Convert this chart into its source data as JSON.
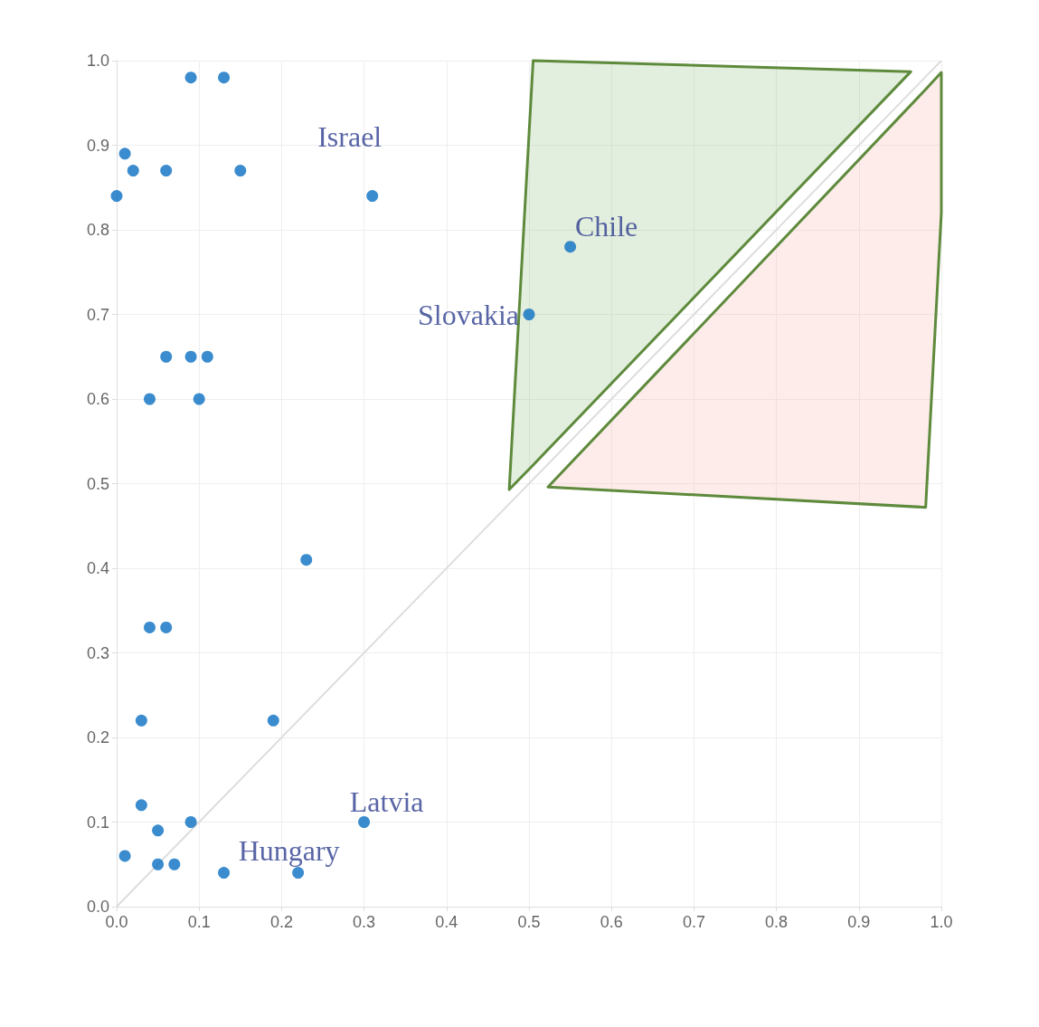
{
  "chart_data": {
    "type": "scatter",
    "xlim": [
      0,
      1
    ],
    "ylim": [
      0,
      1
    ],
    "xticks": [
      {
        "value": 0,
        "label": "0.0"
      },
      0.1,
      0.2,
      0.3,
      0.4,
      0.5,
      0.6,
      0.7,
      0.8,
      0.9,
      {
        "value": 1,
        "label": "1.0"
      }
    ],
    "yticks": [
      {
        "value": 0,
        "label": "0.0"
      },
      0.1,
      0.2,
      0.3,
      0.4,
      0.5,
      0.6,
      0.7,
      0.8,
      0.9,
      {
        "value": 1,
        "label": "1.0"
      }
    ],
    "grid": true,
    "marker": "circle",
    "series": [
      {
        "type": "line",
        "color": "#dddddd",
        "marker": "none",
        "x": [
          0,
          1
        ],
        "values": [
          0,
          1
        ]
      },
      {
        "type": "area",
        "color": "#8fbf7a",
        "x": [
          0.476,
          0.505,
          0.963
        ],
        "values": [
          null,
          null,
          null
        ],
        "lower": [
          0.493,
          0.522,
          0.987
        ],
        "upper": [
          0.493,
          1.0,
          0.987
        ]
      },
      {
        "type": "area",
        "color": "#f7b5a8",
        "x": [
          0.523,
          0.981,
          1.0
        ],
        "values": [
          null,
          null,
          null
        ],
        "lower": [
          0.496,
          0.472,
          0.82
        ],
        "upper": [
          0.496,
          0.966,
          0.986
        ]
      },
      {
        "color": "#0a6fc2",
        "x": [
          0.09,
          0.13,
          0.01,
          0.02,
          0.06,
          0.15,
          0.0,
          0.31,
          0.55,
          0.5,
          0.06,
          0.09,
          0.11,
          0.04,
          0.1,
          0.23,
          0.04,
          0.06,
          0.03,
          0.19,
          0.03,
          0.05,
          0.09,
          0.3,
          0.01,
          0.05,
          0.07,
          0.13,
          0.22
        ],
        "values": [
          0.98,
          0.98,
          0.89,
          0.87,
          0.87,
          0.87,
          0.84,
          0.84,
          0.78,
          0.7,
          0.65,
          0.65,
          0.65,
          0.6,
          0.6,
          0.41,
          0.33,
          0.33,
          0.22,
          0.22,
          0.12,
          0.09,
          0.1,
          0.1,
          0.06,
          0.05,
          0.05,
          0.04,
          0.04
        ]
      }
    ],
    "annotations": [
      {
        "text": "Israel",
        "x": 0.31,
        "y": 0.84
      },
      {
        "text": "Chile",
        "x": 0.55,
        "y": 0.78
      },
      {
        "text": "Slovakia",
        "x": 0.5,
        "y": 0.7
      },
      {
        "text": "Latvia",
        "x": 0.3,
        "y": 0.1
      },
      {
        "text": "Hungary",
        "x": 0.22,
        "y": 0.04
      }
    ]
  }
}
